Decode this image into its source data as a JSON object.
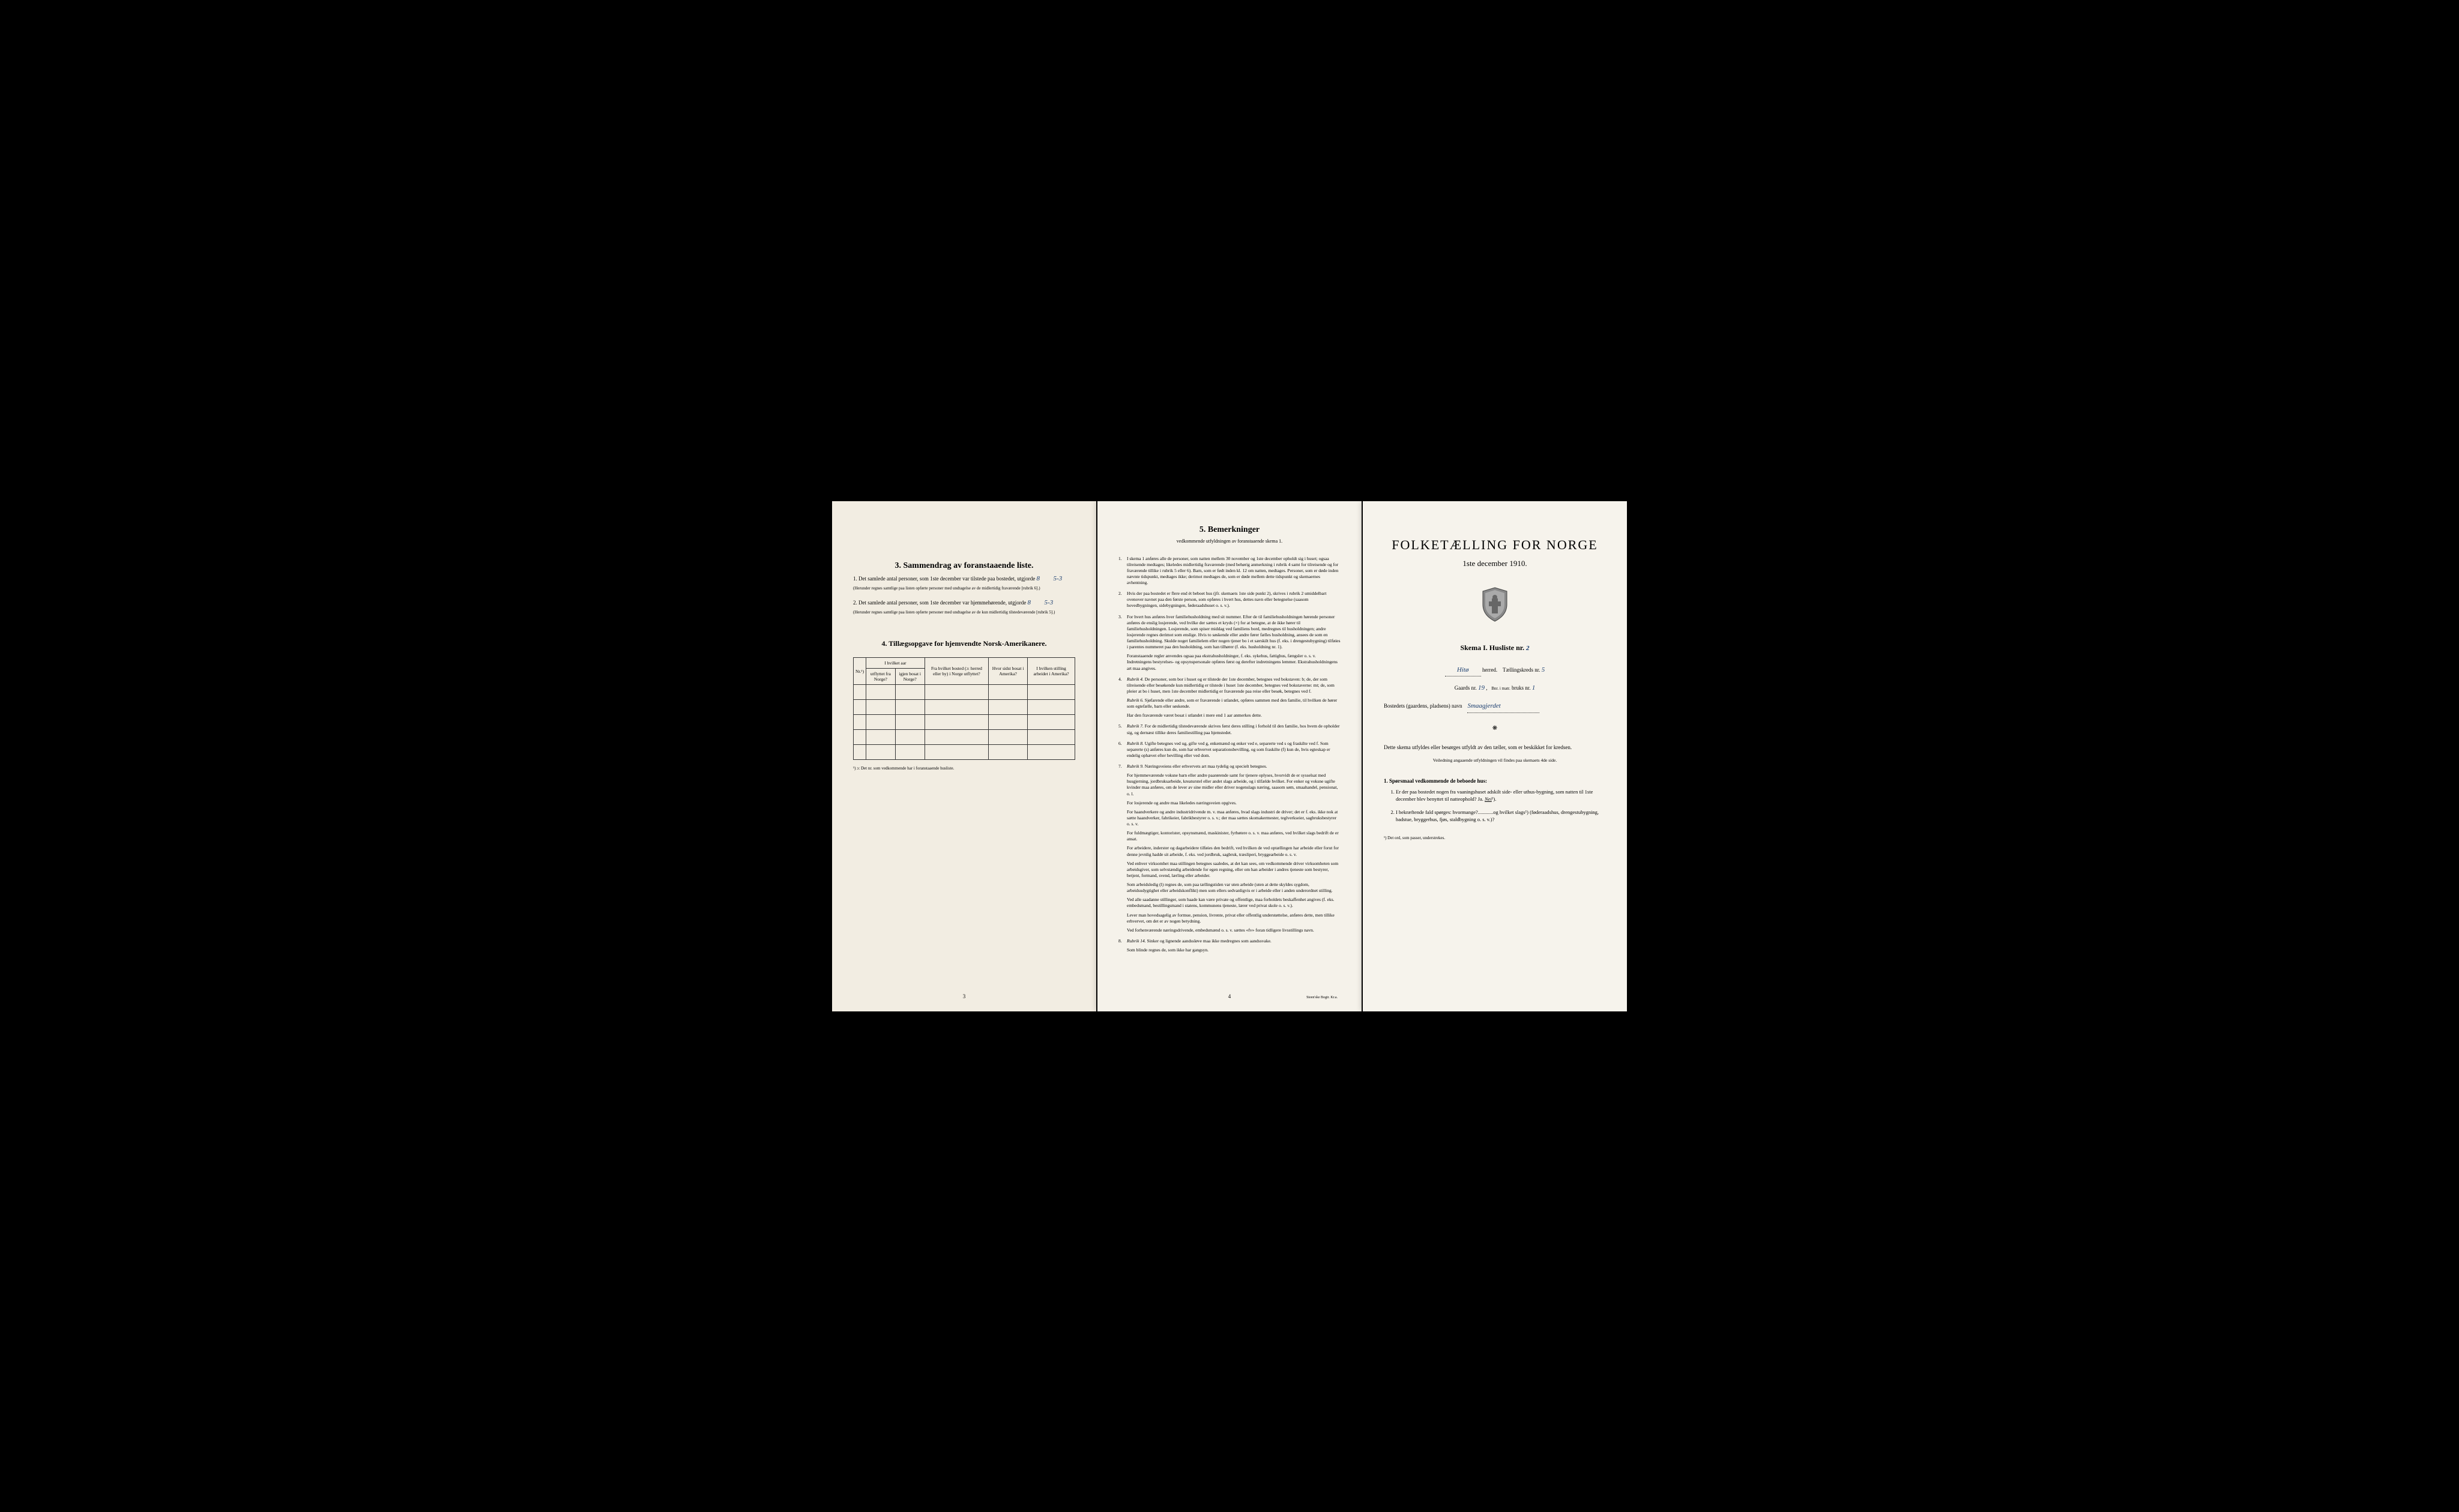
{
  "page_left": {
    "section3": {
      "title": "3.   Sammendrag av foranstaaende liste.",
      "q1_text": "Det samlede antal personer, som 1ste december var tilstede paa bostedet, utgjorde",
      "q1_value": "8",
      "q1_note": "5-3",
      "q1_fine": "(Herunder regnes samtlige paa listen opførte personer med undtagelse av de midlertidig fraværende [rubrik 6].)",
      "q2_text": "Det samlede antal personer, som 1ste december var hjemmehørende, utgjorde",
      "q2_value": "8",
      "q2_note": "5-3",
      "q2_fine": "(Herunder regnes samtlige paa listen opførte personer med undtagelse av de kun midlertidig tilstedeværende [rubrik 5].)"
    },
    "section4": {
      "title": "4.   Tillægsopgave for hjemvendte Norsk-Amerikanere.",
      "col_nr": "Nr.¹)",
      "col_group": "I hvilket aar",
      "col_utflyttet": "utflyttet fra Norge?",
      "col_igjen": "igjen bosat i Norge?",
      "col_bosted": "Fra hvilket bosted (ɔ: herred eller by) i Norge utflyttet?",
      "col_sidst": "Hvor sidst bosat i Amerika?",
      "col_stilling": "I hvilken stilling arbeidet i Amerika?",
      "footnote": "¹) ɔ: Det nr. som vedkommende har i foranstaaende husliste."
    },
    "page_number": "3"
  },
  "page_center": {
    "title": "5.   Bemerkninger",
    "subtitle": "vedkommende utfyldningen av foranstaaende skema 1.",
    "items": [
      {
        "num": "1.",
        "text": "I skema 1 anføres alle de personer, som natten mellem 30 november og 1ste december opholdt sig i huset; ogsaa tilreisende medtages; likeledes midlertidig fraværende (med behørig anmerkning i rubrik 4 samt for tilreisende og for fraværende tillike i rubrik 5 eller 6). Barn, som er født inden kl. 12 om natten, medtages. Personer, som er døde inden nævnte tidspunkt, medtages ikke; derimot medtages de, som er døde mellem dette tidspunkt og skemaernes avhentning."
      },
      {
        "num": "2.",
        "text": "Hvis der paa bostedet er flere end ét beboet hus (jfr. skemaets 1ste side punkt 2), skrives i rubrik 2 umiddelbart ovenover navnet paa den første person, som opføres i hvert hus, dettes navn eller betegnelse (saasom hovedbygningen, sidebygningen, føderaadshuset o. s. v.)."
      },
      {
        "num": "3.",
        "text": "For hvert hus anføres hver familiehusholdning med sit nummer. Efter de til familiehusholdningen hørende personer anføres de enslig losjerende, ved hvilke der sættes et kryds (×) for at betegne, at de ikke hører til familiehusholdningen. Losjerende, som spiser middag ved familiens bord, medregnes til husholdningen; andre losjerende regnes derimot som enslige. Hvis to søskende eller andre fører fælles husholdning, ansees de som en familiehusholdning. Skulde noget familielem eller nogen tjener bo i et særskilt hus (f. eks. i drengestubygning) tilføies i parentes nummeret paa den husholdning, som han tilhører (f. eks. husholdning nr. 1).",
        "paras": [
          "Foranstaaende regler anvendes ogsaa paa ekstrahusholdninger, f. eks. sykehus, fattighus, fængsler o. s. v. Indretningens bestyrelses- og opsynspersonale opføres først og derefter indretningens lemmer. Ekstrahusholdningens art maa angives."
        ]
      },
      {
        "num": "4.",
        "text": "Rubrik 4. De personer, som bor i huset og er tilstede der 1ste december, betegnes ved bokstaven: b; de, der som tilreisende eller besøkende kun midlertidig er tilstede i huset 1ste december, betegnes ved bokstaverne: mt; de, som pleier at bo i huset, men 1ste december midlertidig er fraværende paa reise eller besøk, betegnes ved f.",
        "paras": [
          "Rubrik 6. Sjøfarende eller andre, som er fraværende i utlandet, opføres sammen med den familie, til hvilken de hører som egtefælle, barn eller søskende.",
          "Har den fraværende været bosat i utlandet i mere end 1 aar anmerkes dette."
        ]
      },
      {
        "num": "5.",
        "text": "Rubrik 7. For de midlertidig tilstedeværende skrives først deres stilling i forhold til den familie, hos hvem de opholder sig, og dernæst tillike deres familiestilling paa hjemstedet."
      },
      {
        "num": "6.",
        "text": "Rubrik 8. Ugifte betegnes ved ug, gifte ved g, enkemænd og enker ved e, separerte ved s og fraskilte ved f. Som separerte (s) anføres kun de, som har erhvervet separationsbevilling, og som fraskilte (f) kun de, hvis egteskap er endelig ophævet efter bevilling eller ved dom."
      },
      {
        "num": "7.",
        "text": "Rubrik 9. Næringsveiens eller erhvervets art maa tydelig og specielt betegnes.",
        "paras": [
          "For hjemmeværende voksne barn eller andre paarørende samt for tjenere oplyses, hvorvidt de er sysselsat med husgjerning, jordbruksarbeide, kreaturstel eller andet slags arbeide, og i tilfælde hvilket. For enker og voksne ugifte kvinder maa anføres, om de lever av sine midler eller driver nogenslags næring, saasom søm, smaahandel, pensionat, o. l.",
          "For losjerende og andre maa likeledes næringsveien opgives.",
          "For haandverkere og andre industridrivende m. v. maa anføres, hvad slags industri de driver; det er f. eks. ikke nok at sætte haandverker, fabrikeier, fabrikbestyrer o. s. v.; der maa sættes skomakermester, teglverkseier, sagbruksbestyrer o. s. v.",
          "For fuldmægtiger, kontorister, opsynsmænd, maskinister, fyrbøtere o. s. v. maa anføres, ved hvilket slags bedrift de er ansat.",
          "For arbeidere, inderster og dagarbeidere tilføies den bedrift, ved hvilken de ved optællingen har arbeide eller forut for denne jevnlig hadde sit arbeide, f. eks. ved jordbruk, sagbruk, træsliperi, bryggearbeide o. s. v.",
          "Ved enhver virksomhet maa stillingen betegnes saaledes, at det kan sees, om vedkommende driver virksomheten som arbeidsgiver, som selvstændig arbeidende for egen regning, eller om han arbeider i andres tjeneste som bestyrer, betjent, formand, svend, lærling eller arbeider.",
          "Som arbeidsledig (l) regnes de, som paa tællingstiden var uten arbeide (uten at dette skyldes sygdom, arbeidsudygtighet eller arbeidskonflikt) men som ellers sedvanligvis er i arbeide eller i anden underordnet stilling.",
          "Ved alle saadanne stillinger, som baade kan være private og offentlige, maa forholdets beskaffenhet angives (f. eks. embedsmand, bestillingsmand i statens, kommunens tjeneste, lærer ved privat skole o. s. v.).",
          "Lever man hovedsagelig av formue, pension, livrente, privat eller offentlig understøttelse, anføres dette, men tillike erhvervet, om det er av nogen betydning.",
          "Ved forhenværende næringsdrivende, embedsmænd o. s. v. sættes «fv» foran tidligere livsstillings navn."
        ]
      },
      {
        "num": "8.",
        "text": "Rubrik 14. Sinker og lignende aandssløve maa ikke medregnes som aandssvake.",
        "paras": [
          "Som blinde regnes de, som ikke har gangsyn."
        ]
      }
    ],
    "page_number": "4",
    "printer": "Steen'ske Bogtr. Kr.a."
  },
  "page_right": {
    "main_title": "FOLKETÆLLING FOR NORGE",
    "date": "1ste december 1910.",
    "skema_label": "Skema I.   Husliste nr.",
    "skema_nr": "2",
    "herred_value": "Hitø",
    "herred_label": "herred.",
    "kreds_label": "Tællingskreds nr.",
    "kreds_value": "5",
    "gaards_label": "Gaards nr.",
    "gaards_value": "19",
    "bruks_note": "Bnr. i matr.",
    "bruks_label": "bruks nr.",
    "bruks_value": "1",
    "bosted_label": "Bostedets (gaardens, pladsens) navn",
    "bosted_value": "Smaagjerdet",
    "instruction_main": "Dette skema utfyldes eller besørges utfyldt av den tæller, som er beskikket for kredsen.",
    "instruction_sub": "Veiledning angaaende utfyldningen vil findes paa skemaets 4de side.",
    "q_heading": "1. Spørsmaal vedkommende de beboede hus:",
    "questions": [
      "Er der paa bostedet nogen fra vaaningshuset adskilt side- eller uthus-bygning, som natten til 1ste december blev benyttet til natteophold? Ja. Nei¹).",
      "I bekræftende fald spørges: hvormange?............og hvilket slags¹) (føderaadshus, drengestubygning, badstue, bryggerhus, fjøs, staldbygning o. s. v.)?"
    ],
    "footnote": "¹) Det ord, som passer, understrekes."
  }
}
